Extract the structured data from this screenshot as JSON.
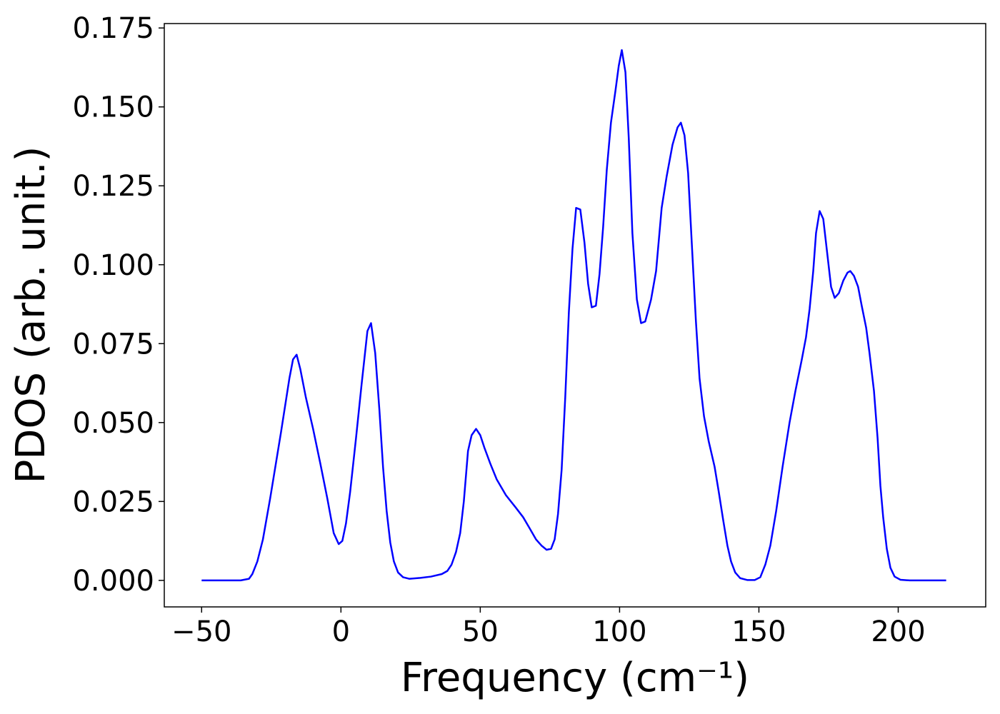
{
  "chart_data": {
    "type": "line",
    "xlabel": "Frequency (cm⁻¹)",
    "ylabel": "PDOS (arb. unit.)",
    "xlim": [
      -63.4,
      231.4
    ],
    "ylim": [
      -0.0084,
      0.1764
    ],
    "xticks": [
      {
        "value": -50,
        "label": "−50"
      },
      0,
      50,
      100,
      150,
      200
    ],
    "yticks": [
      {
        "value": 0,
        "label": "0.000"
      },
      {
        "value": 0.025,
        "label": "0.025"
      },
      {
        "value": 0.05,
        "label": "0.050"
      },
      {
        "value": 0.075,
        "label": "0.075"
      },
      {
        "value": 0.1,
        "label": "0.100"
      },
      {
        "value": 0.125,
        "label": "0.125"
      },
      {
        "value": 0.15,
        "label": "0.150"
      },
      {
        "value": 0.175,
        "label": "0.175"
      }
    ],
    "x": [
      -50,
      -40,
      -36,
      -33,
      -31.8,
      -30,
      -28,
      -25.4,
      -21.5,
      -18.5,
      -17.2,
      -15.9,
      -14.6,
      -12.6,
      -10,
      -7.4,
      -4.9,
      -2.6,
      -0.8,
      0.5,
      1.8,
      3.3,
      5.4,
      7.4,
      9.5,
      10.8,
      12.3,
      13.8,
      15.1,
      16.4,
      17.7,
      19,
      20.5,
      22.3,
      24.6,
      28.5,
      32.3,
      36.2,
      38.2,
      39.7,
      41.3,
      42.8,
      44.1,
      45.6,
      46.9,
      48.5,
      50,
      51.5,
      53.6,
      55.9,
      59.2,
      62.8,
      65.4,
      67.4,
      70,
      72,
      73.8,
      75.4,
      76.7,
      77.9,
      79.2,
      80.5,
      81.8,
      83.1,
      84.4,
      85.9,
      87.4,
      88.7,
      90,
      91.5,
      92.8,
      94.1,
      95.4,
      96.9,
      98.5,
      99.7,
      100.8,
      102.1,
      103.3,
      104.6,
      106.2,
      107.7,
      109.2,
      111.3,
      113.1,
      115.1,
      116.9,
      119,
      120.8,
      122,
      123.3,
      124.6,
      125.9,
      127.4,
      128.7,
      130.3,
      132,
      134.1,
      135.6,
      137.2,
      138.7,
      140,
      141.5,
      143.3,
      145.9,
      148.5,
      150.5,
      152.3,
      154.1,
      156.2,
      158.5,
      161,
      163.1,
      165.4,
      166.9,
      168.2,
      169.5,
      170.5,
      171.8,
      173.1,
      174.6,
      175.9,
      177.2,
      178.7,
      180.3,
      181.8,
      182.8,
      184.1,
      185.6,
      186.9,
      188.5,
      189.7,
      191.3,
      192.6,
      193.6,
      194.6,
      195.9,
      197.2,
      198.7,
      200.8,
      204.1,
      217.2
    ],
    "series": [
      {
        "color": "#0000ff",
        "values": [
          0,
          0,
          0,
          0.0005,
          0.002,
          0.006,
          0.013,
          0.026,
          0.047,
          0.064,
          0.07,
          0.0715,
          0.067,
          0.058,
          0.048,
          0.037,
          0.026,
          0.015,
          0.0115,
          0.0125,
          0.018,
          0.028,
          0.045,
          0.062,
          0.079,
          0.0815,
          0.072,
          0.054,
          0.036,
          0.022,
          0.012,
          0.006,
          0.0025,
          0.001,
          0.0005,
          0.0008,
          0.0012,
          0.002,
          0.003,
          0.005,
          0.009,
          0.015,
          0.025,
          0.041,
          0.046,
          0.048,
          0.046,
          0.042,
          0.037,
          0.032,
          0.027,
          0.023,
          0.02,
          0.017,
          0.013,
          0.011,
          0.0097,
          0.01,
          0.013,
          0.021,
          0.035,
          0.058,
          0.085,
          0.105,
          0.118,
          0.1175,
          0.107,
          0.094,
          0.0865,
          0.087,
          0.097,
          0.112,
          0.13,
          0.145,
          0.155,
          0.163,
          0.168,
          0.161,
          0.14,
          0.11,
          0.089,
          0.0815,
          0.082,
          0.089,
          0.098,
          0.118,
          0.128,
          0.138,
          0.1435,
          0.145,
          0.141,
          0.129,
          0.107,
          0.082,
          0.064,
          0.052,
          0.044,
          0.036,
          0.028,
          0.019,
          0.011,
          0.006,
          0.0025,
          0.0007,
          0.0001,
          0.0001,
          0.001,
          0.005,
          0.011,
          0.022,
          0.036,
          0.05,
          0.06,
          0.07,
          0.077,
          0.086,
          0.098,
          0.11,
          0.117,
          0.1145,
          0.103,
          0.093,
          0.0895,
          0.091,
          0.095,
          0.0975,
          0.098,
          0.0965,
          0.093,
          0.087,
          0.08,
          0.072,
          0.06,
          0.045,
          0.03,
          0.02,
          0.01,
          0.004,
          0.0012,
          0.0002,
          0,
          0
        ]
      }
    ]
  }
}
